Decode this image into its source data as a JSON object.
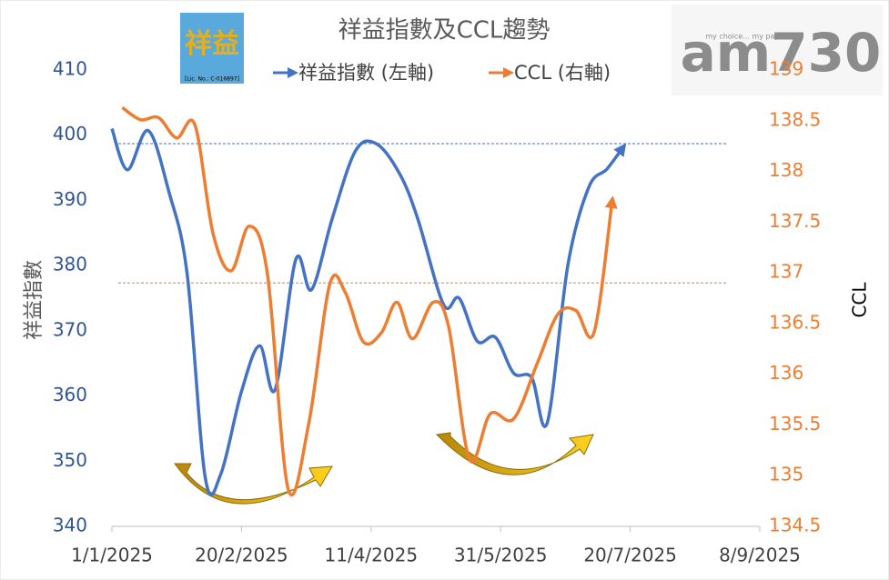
{
  "chart_data": {
    "type": "line",
    "title": "祥益指數及CCL趨勢",
    "y_label": "祥益指數",
    "y2_label": "CCL",
    "xlim": [
      "1/1/2025",
      "8/9/2025"
    ],
    "xticks": [
      "1/1/2025",
      "20/2/2025",
      "11/4/2025",
      "31/5/2025",
      "20/7/2025",
      "8/9/2025"
    ],
    "ylim": [
      340,
      410
    ],
    "yticks": [
      340,
      350,
      360,
      370,
      380,
      390,
      400,
      410
    ],
    "y2lim": [
      134.5,
      139
    ],
    "y2ticks": [
      134.5,
      135,
      135.5,
      136,
      136.5,
      137,
      137.5,
      138,
      138.5,
      139
    ],
    "series": [
      {
        "name": "祥益指數 (左軸)",
        "color": "#4472c4",
        "axis": "y",
        "x": [
          "1/1/2025",
          "7/1/2025",
          "15/1/2025",
          "23/1/2025",
          "30/1/2025",
          "6/2/2025",
          "12/2/2025",
          "20/2/2025",
          "27/2/2025",
          "5/3/2025",
          "13/3/2025",
          "19/3/2025",
          "27/3/2025",
          "5/4/2025",
          "13/4/2025",
          "22/4/2025",
          "29/4/2025",
          "9/5/2025",
          "15/5/2025",
          "22/5/2025",
          "29/5/2025",
          "5/6/2025",
          "12/6/2025",
          "18/6/2025",
          "26/6/2025",
          "4/7/2025",
          "11/7/2025",
          "17/7/2025"
        ],
        "values": [
          401,
          394.7,
          400.7,
          391.3,
          378.8,
          347.5,
          348,
          360.7,
          367.7,
          361,
          381,
          376.3,
          387.2,
          397.6,
          398.7,
          394.1,
          387.2,
          374,
          375,
          368.4,
          369,
          363.5,
          362.8,
          355.9,
          380.2,
          392,
          394.8,
          398
        ]
      },
      {
        "name": "CCL (右軸)",
        "color": "#ed7d31",
        "axis": "y2",
        "x": [
          "5/1/2025",
          "12/1/2025",
          "19/1/2025",
          "26/1/2025",
          "2/2/2025",
          "9/2/2025",
          "16/2/2025",
          "23/2/2025",
          "2/3/2025",
          "10/3/2025",
          "18/3/2025",
          "26/3/2025",
          "1/4/2025",
          "8/4/2025",
          "15/4/2025",
          "21/4/2025",
          "27/4/2025",
          "5/5/2025",
          "11/5/2025",
          "19/5/2025",
          "27/5/2025",
          "5/6/2025",
          "14/6/2025",
          "22/6/2025",
          "29/6/2025",
          "6/7/2025",
          "13/7/2025"
        ],
        "values": [
          138.63,
          138.51,
          138.53,
          138.33,
          138.46,
          137.39,
          137.02,
          137.46,
          136.99,
          134.87,
          135.52,
          136.88,
          136.81,
          136.32,
          136.41,
          136.71,
          136.35,
          136.71,
          136.46,
          135.16,
          135.61,
          135.56,
          136.1,
          136.59,
          136.63,
          136.41,
          137.7
        ]
      }
    ],
    "reference_lines": [
      {
        "value": 398.7,
        "axis": "y",
        "color": "#4472c4"
      },
      {
        "value": 136.9,
        "axis": "y2",
        "color": "#ed7d31"
      }
    ]
  },
  "logos": {
    "left": "祥益",
    "left_caption": "[Lic. No.: C-016897]",
    "right": "am730",
    "right_caption": "my choice... my paper"
  }
}
